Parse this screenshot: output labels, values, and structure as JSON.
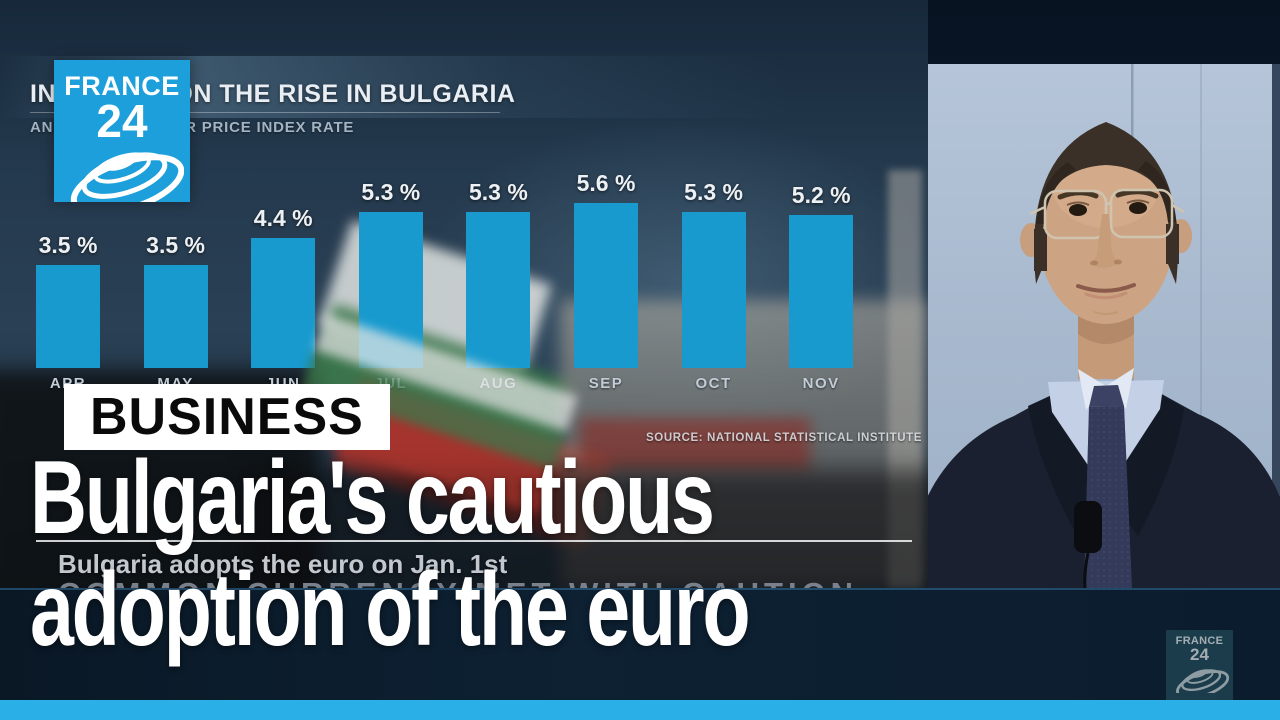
{
  "branding": {
    "channel": "FRANCE 24",
    "logo": {
      "line1": "FRANCE",
      "line2": "24"
    },
    "watermark": {
      "line1": "FRANCE",
      "line2": "24"
    },
    "colors": {
      "logo_blue": "#1c9fda",
      "bottom_bar_blue": "#2aafe6"
    }
  },
  "chart_data": {
    "type": "bar",
    "title": "INFLATION ON THE RISE IN BULGARIA",
    "subtitle": "ANNUAL CONSUMER PRICE INDEX RATE",
    "categories": [
      "APR",
      "MAY",
      "JUN",
      "JUL",
      "AUG",
      "SEP",
      "OCT",
      "NOV"
    ],
    "values": [
      3.5,
      3.5,
      4.4,
      5.3,
      5.3,
      5.6,
      5.3,
      5.2
    ],
    "unit": "%",
    "value_label_suffix": " %",
    "source": "SOURCE: NATIONAL STATISTICAL INSTITUTE",
    "bar_color": "#189ace",
    "ylim": [
      0,
      6
    ],
    "grid": false,
    "legend": false
  },
  "video_lower_third": {
    "line1": "Bulgaria adopts the euro on Jan. 1st",
    "line2": "COMMON CURRENCY MET WITH CAUTION"
  },
  "overlay": {
    "category": "BUSINESS",
    "headline_line1": "Bulgaria's cautious",
    "headline_line2": "adoption of the euro"
  }
}
